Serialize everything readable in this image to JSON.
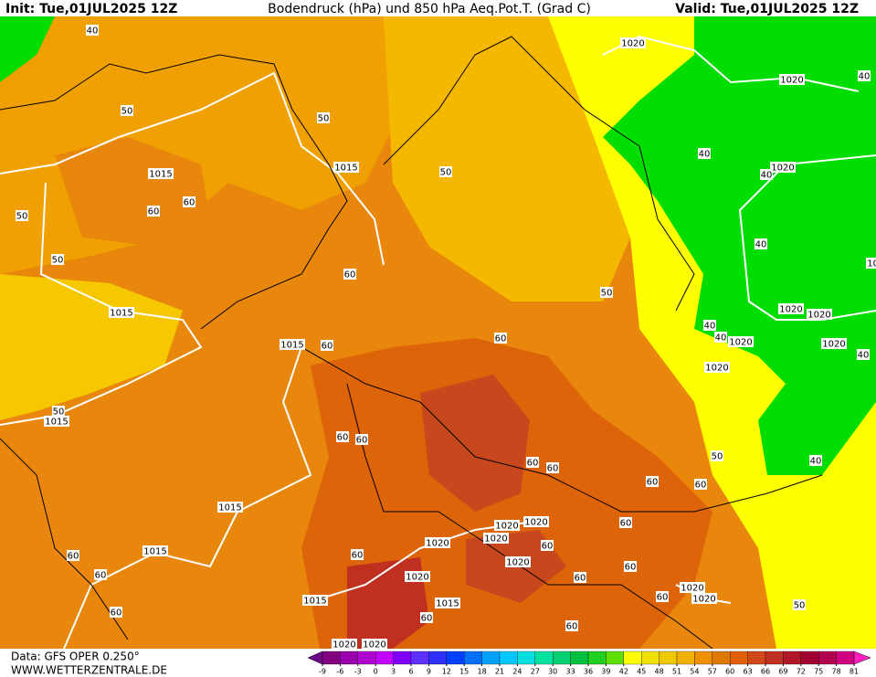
{
  "header": {
    "init": "Init: Tue,01JUL2025 12Z",
    "title": "Bodendruck (hPa) und 850 hPa Aeq.Pot.T. (Grad C)",
    "valid": "Valid: Tue,01JUL2025 12Z"
  },
  "footer": {
    "data": "Data: GFS OPER 0.250°",
    "site": "WWW.WETTERZENTRALE.DE"
  },
  "isobar_labels": [
    1020,
    1020,
    1015,
    1015,
    1020,
    1015,
    1020,
    1020,
    1015,
    1020,
    1020,
    1020,
    1015,
    1015,
    1020,
    1020,
    1020,
    1015,
    1020,
    1020,
    1020,
    1020,
    1015,
    1015,
    1020,
    1020,
    1020,
    1020
  ],
  "thetae_labels": [
    40,
    50,
    50,
    40,
    60,
    60,
    50,
    50,
    40,
    40,
    40,
    50,
    60,
    50,
    60,
    40,
    40,
    60,
    40,
    50,
    60,
    60,
    50,
    40,
    60,
    60,
    60,
    60,
    60,
    60,
    60,
    60,
    60,
    60,
    60,
    60,
    60,
    50,
    60,
    60
  ],
  "colorbar": {
    "ticks": [
      -9,
      -6,
      -3,
      0,
      3,
      6,
      9,
      12,
      15,
      18,
      21,
      24,
      27,
      30,
      33,
      36,
      39,
      42,
      45,
      48,
      51,
      54,
      57,
      60,
      63,
      66,
      69,
      72,
      75,
      78,
      81
    ],
    "colors": [
      "#6a0a8a",
      "#800080",
      "#9a00b0",
      "#b000d0",
      "#c000ff",
      "#8000ff",
      "#6030ff",
      "#3030ff",
      "#0040ff",
      "#0070ff",
      "#00a0ff",
      "#00c8ff",
      "#00e0e0",
      "#00e0a0",
      "#00d070",
      "#00c040",
      "#20d020",
      "#60e000",
      "#ffff00",
      "#f0e000",
      "#f0c800",
      "#f0b000",
      "#f09000",
      "#e07800",
      "#e06000",
      "#d04818",
      "#c03020",
      "#b01828",
      "#a00030",
      "#b00050",
      "#d00080",
      "#ff20c0"
    ]
  }
}
